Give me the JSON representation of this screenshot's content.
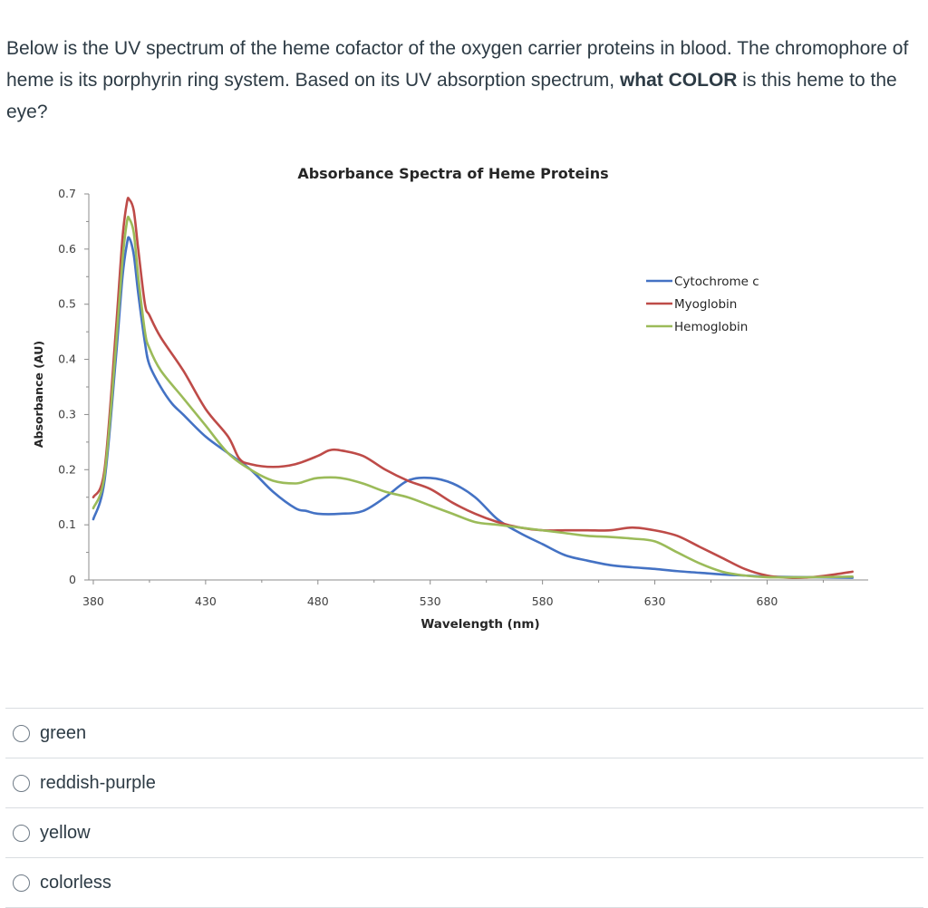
{
  "question": {
    "text_part1": "Below is the UV spectrum of the heme cofactor of the oxygen carrier proteins in blood. The chromophore of heme is its  porphyrin ring system. Based on its UV absorption spectrum, ",
    "bold_what": "what",
    "text_part2": " ",
    "bold_color": "COLOR",
    "text_part3": " is this heme to the eye?"
  },
  "chart_data": {
    "type": "line",
    "title": "Absorbance Spectra of Heme Proteins",
    "xlabel": "Wavelength (nm)",
    "ylabel": "Absorbance (AU)",
    "xlim": [
      378,
      725
    ],
    "ylim": [
      0,
      0.7
    ],
    "xticks": [
      380,
      430,
      480,
      530,
      580,
      630,
      680
    ],
    "yticks": [
      0,
      0.1,
      0.2,
      0.3,
      0.4,
      0.5,
      0.6,
      0.7
    ],
    "ytick_labels": [
      "0",
      "0.1",
      "0.2",
      "0.3",
      "0.4",
      "0.5",
      "0.6",
      "0.7"
    ],
    "legend_position": "top-right",
    "grid": false,
    "series": [
      {
        "name": "Cytochrome c",
        "color": "#4472c4",
        "points": [
          [
            380,
            0.11
          ],
          [
            385,
            0.18
          ],
          [
            390,
            0.4
          ],
          [
            393,
            0.55
          ],
          [
            395,
            0.61
          ],
          [
            396,
            0.62
          ],
          [
            398,
            0.59
          ],
          [
            400,
            0.52
          ],
          [
            403,
            0.43
          ],
          [
            405,
            0.39
          ],
          [
            410,
            0.35
          ],
          [
            415,
            0.32
          ],
          [
            420,
            0.3
          ],
          [
            430,
            0.26
          ],
          [
            440,
            0.23
          ],
          [
            450,
            0.2
          ],
          [
            460,
            0.16
          ],
          [
            470,
            0.13
          ],
          [
            475,
            0.125
          ],
          [
            480,
            0.12
          ],
          [
            490,
            0.12
          ],
          [
            500,
            0.125
          ],
          [
            510,
            0.15
          ],
          [
            520,
            0.18
          ],
          [
            530,
            0.185
          ],
          [
            540,
            0.175
          ],
          [
            550,
            0.15
          ],
          [
            560,
            0.11
          ],
          [
            570,
            0.085
          ],
          [
            580,
            0.065
          ],
          [
            590,
            0.045
          ],
          [
            600,
            0.035
          ],
          [
            610,
            0.027
          ],
          [
            620,
            0.023
          ],
          [
            630,
            0.02
          ],
          [
            640,
            0.016
          ],
          [
            650,
            0.013
          ],
          [
            660,
            0.01
          ],
          [
            670,
            0.008
          ],
          [
            680,
            0.006
          ],
          [
            700,
            0.005
          ],
          [
            718,
            0.004
          ]
        ]
      },
      {
        "name": "Myoglobin",
        "color": "#be4b48",
        "points": [
          [
            380,
            0.15
          ],
          [
            385,
            0.2
          ],
          [
            390,
            0.45
          ],
          [
            393,
            0.62
          ],
          [
            395,
            0.685
          ],
          [
            396,
            0.69
          ],
          [
            398,
            0.67
          ],
          [
            400,
            0.6
          ],
          [
            403,
            0.5
          ],
          [
            405,
            0.48
          ],
          [
            410,
            0.44
          ],
          [
            420,
            0.38
          ],
          [
            430,
            0.31
          ],
          [
            440,
            0.26
          ],
          [
            445,
            0.22
          ],
          [
            450,
            0.21
          ],
          [
            460,
            0.205
          ],
          [
            470,
            0.21
          ],
          [
            480,
            0.225
          ],
          [
            485,
            0.235
          ],
          [
            490,
            0.235
          ],
          [
            500,
            0.225
          ],
          [
            510,
            0.2
          ],
          [
            520,
            0.18
          ],
          [
            530,
            0.165
          ],
          [
            540,
            0.14
          ],
          [
            550,
            0.12
          ],
          [
            560,
            0.105
          ],
          [
            570,
            0.095
          ],
          [
            580,
            0.09
          ],
          [
            590,
            0.09
          ],
          [
            600,
            0.09
          ],
          [
            610,
            0.09
          ],
          [
            620,
            0.095
          ],
          [
            630,
            0.09
          ],
          [
            640,
            0.08
          ],
          [
            650,
            0.06
          ],
          [
            660,
            0.04
          ],
          [
            670,
            0.02
          ],
          [
            680,
            0.008
          ],
          [
            690,
            0.004
          ],
          [
            700,
            0.005
          ],
          [
            710,
            0.01
          ],
          [
            718,
            0.015
          ]
        ]
      },
      {
        "name": "Hemoglobin",
        "color": "#9bbb59",
        "points": [
          [
            380,
            0.13
          ],
          [
            385,
            0.19
          ],
          [
            390,
            0.42
          ],
          [
            393,
            0.58
          ],
          [
            395,
            0.65
          ],
          [
            396,
            0.655
          ],
          [
            398,
            0.63
          ],
          [
            400,
            0.55
          ],
          [
            403,
            0.45
          ],
          [
            405,
            0.42
          ],
          [
            410,
            0.38
          ],
          [
            420,
            0.33
          ],
          [
            430,
            0.28
          ],
          [
            440,
            0.23
          ],
          [
            450,
            0.2
          ],
          [
            460,
            0.18
          ],
          [
            470,
            0.175
          ],
          [
            475,
            0.18
          ],
          [
            480,
            0.185
          ],
          [
            490,
            0.185
          ],
          [
            500,
            0.175
          ],
          [
            510,
            0.16
          ],
          [
            520,
            0.15
          ],
          [
            530,
            0.135
          ],
          [
            540,
            0.12
          ],
          [
            550,
            0.105
          ],
          [
            560,
            0.1
          ],
          [
            570,
            0.095
          ],
          [
            580,
            0.09
          ],
          [
            590,
            0.085
          ],
          [
            600,
            0.08
          ],
          [
            610,
            0.078
          ],
          [
            620,
            0.075
          ],
          [
            630,
            0.07
          ],
          [
            640,
            0.05
          ],
          [
            650,
            0.03
          ],
          [
            660,
            0.015
          ],
          [
            670,
            0.008
          ],
          [
            680,
            0.005
          ],
          [
            700,
            0.005
          ],
          [
            718,
            0.006
          ]
        ]
      }
    ]
  },
  "answers": [
    {
      "label": "green"
    },
    {
      "label": "reddish-purple"
    },
    {
      "label": "yellow"
    },
    {
      "label": "colorless"
    }
  ]
}
